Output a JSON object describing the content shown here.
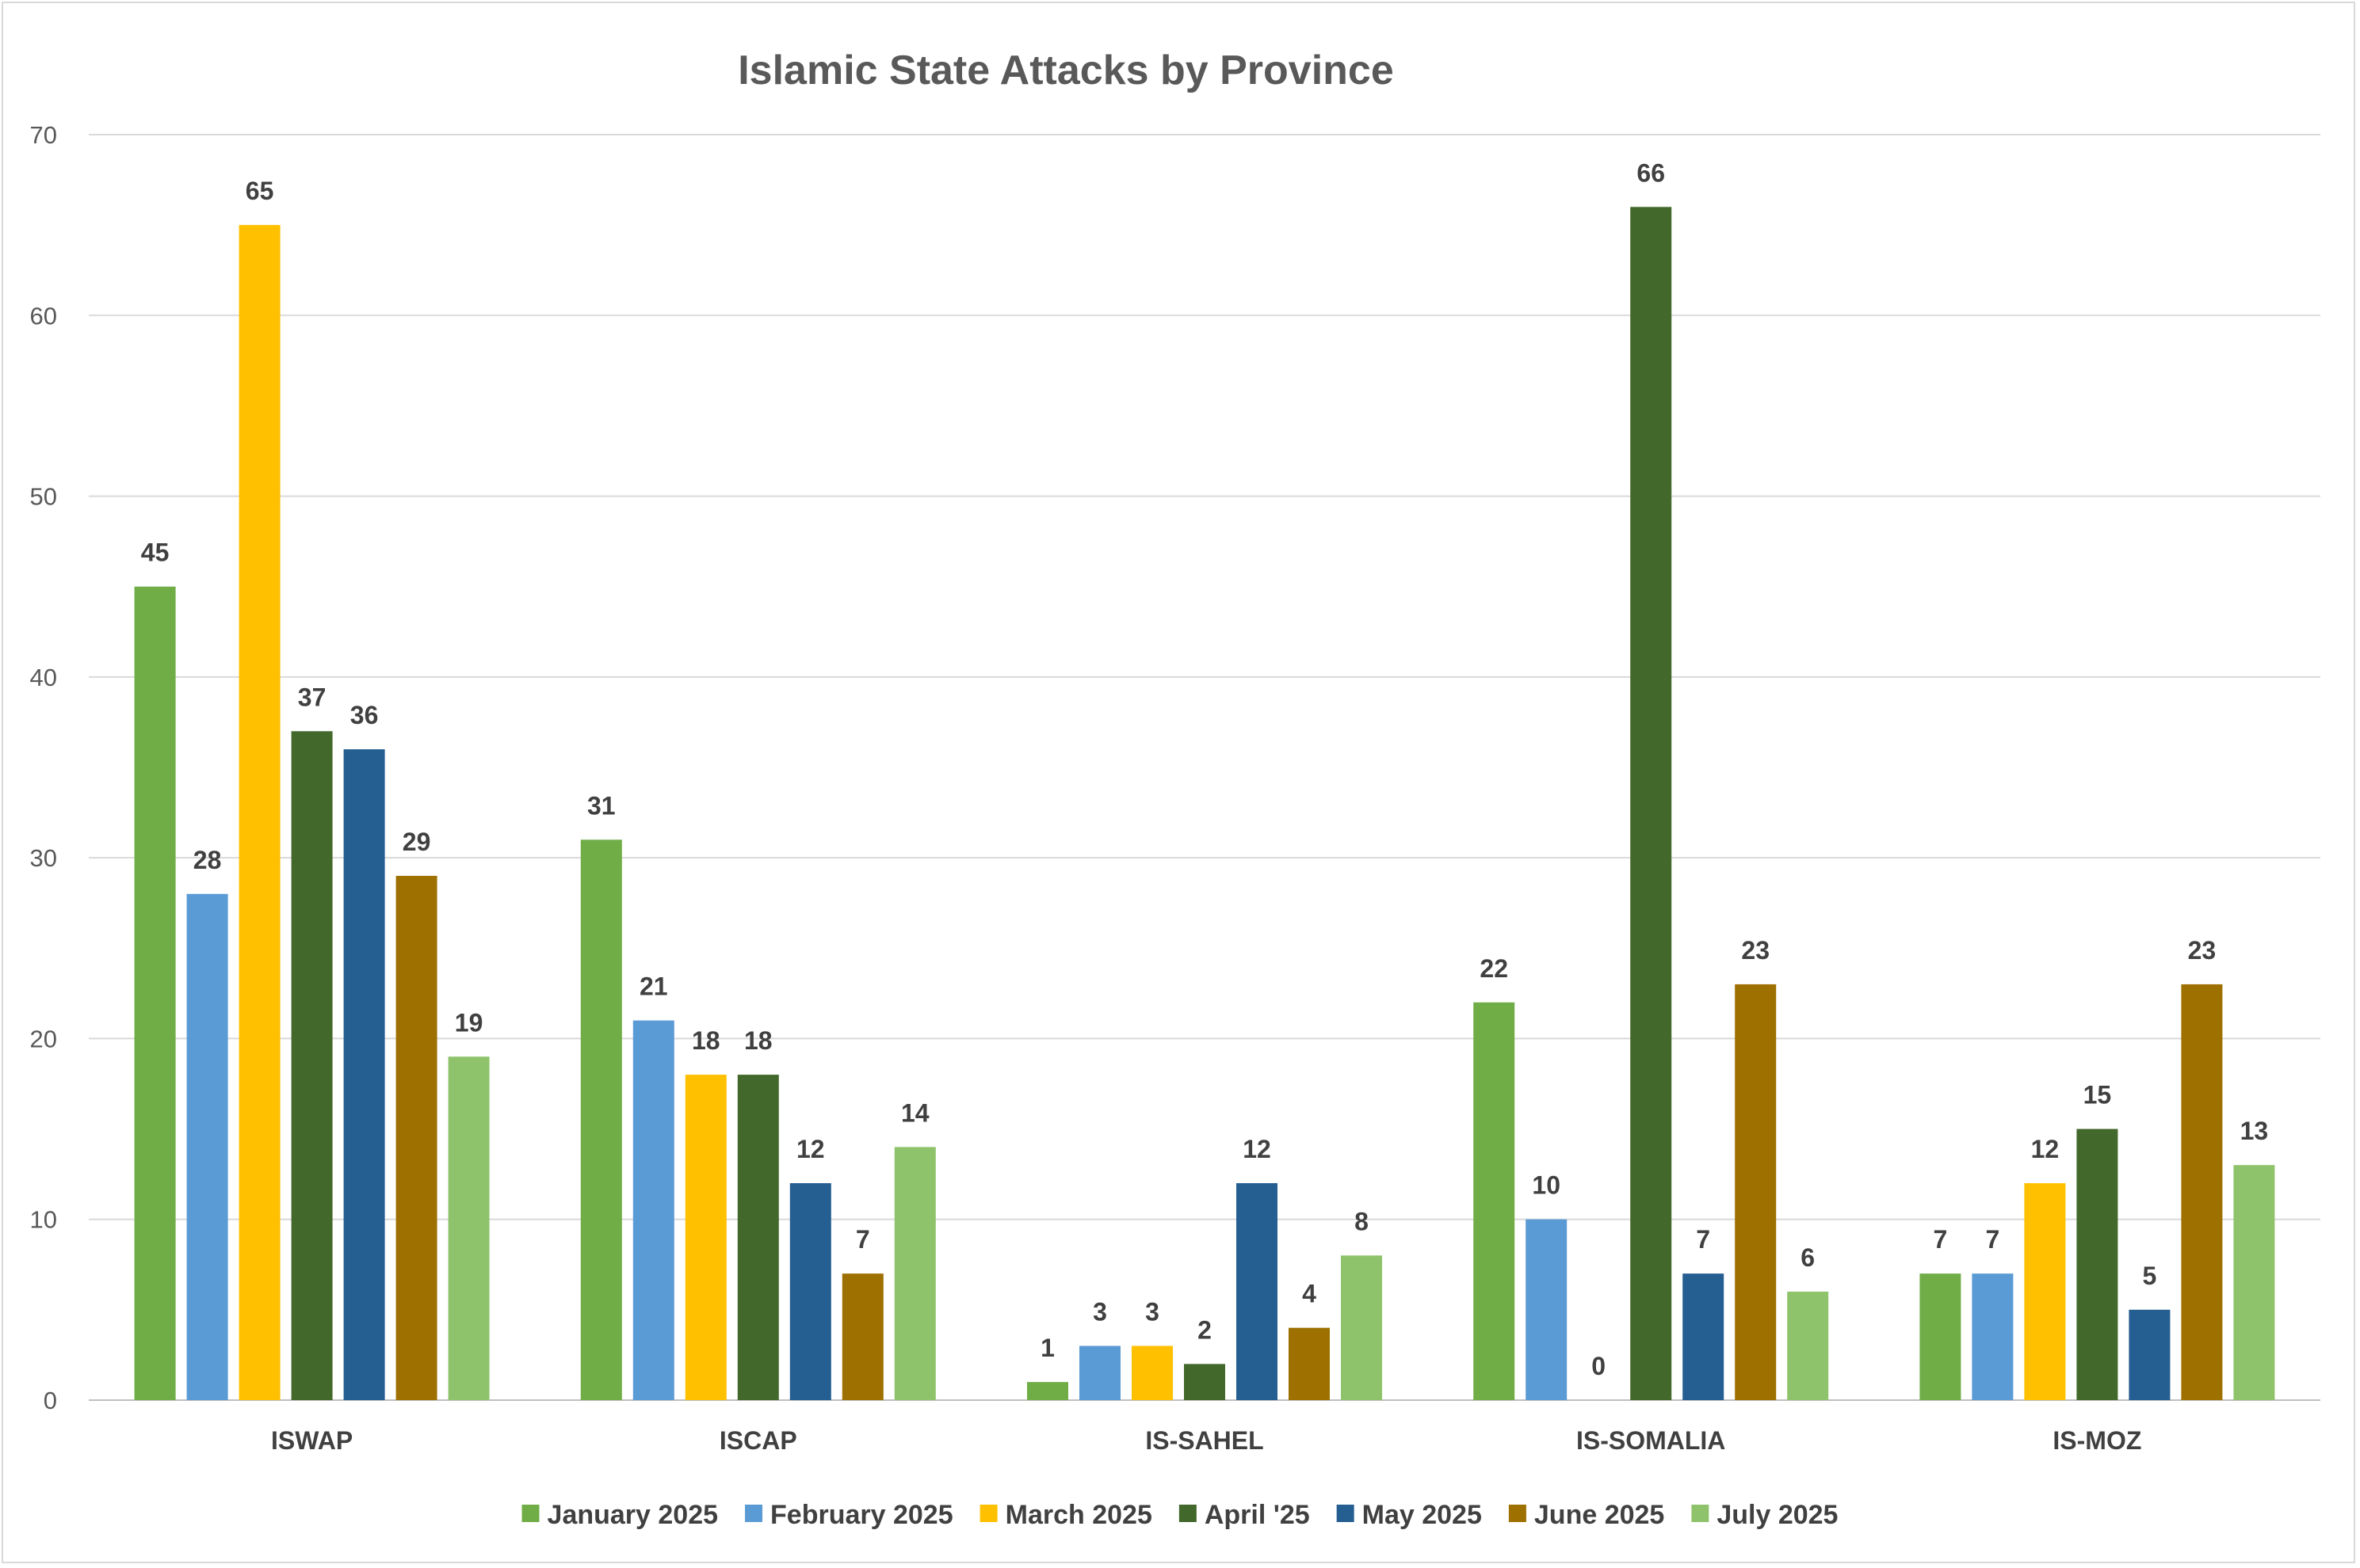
{
  "chart_data": {
    "type": "bar",
    "title": "Islamic State Attacks by Province",
    "xlabel": "",
    "ylabel": "",
    "ylim": [
      0,
      70
    ],
    "yticks": [
      0,
      10,
      20,
      30,
      40,
      50,
      60,
      70
    ],
    "grid": true,
    "legend_position": "bottom",
    "categories": [
      "ISWAP",
      "ISCAP",
      "IS-SAHEL",
      "IS-SOMALIA",
      "IS-MOZ"
    ],
    "series": [
      {
        "name": "January 2025",
        "color": "#70AD47",
        "values": [
          45,
          31,
          1,
          22,
          7
        ]
      },
      {
        "name": "February 2025",
        "color": "#5B9BD5",
        "values": [
          28,
          21,
          3,
          10,
          7
        ]
      },
      {
        "name": "March 2025",
        "color": "#FFC000",
        "values": [
          65,
          18,
          3,
          0,
          12
        ]
      },
      {
        "name": "April '25",
        "color": "#43682B",
        "values": [
          37,
          18,
          2,
          66,
          15
        ]
      },
      {
        "name": "May 2025",
        "color": "#255E91",
        "values": [
          36,
          12,
          12,
          7,
          5
        ]
      },
      {
        "name": "June 2025",
        "color": "#9E7000",
        "values": [
          29,
          7,
          4,
          23,
          23
        ]
      },
      {
        "name": "July 2025",
        "color": "#8FC36B",
        "values": [
          19,
          14,
          8,
          6,
          13
        ]
      }
    ]
  }
}
